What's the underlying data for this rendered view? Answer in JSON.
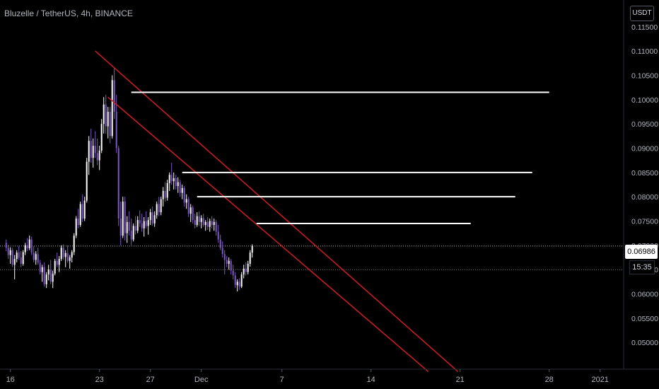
{
  "header": {
    "title": "Bluzelle / TetherUS, 4h, BINANCE"
  },
  "axis": {
    "currency": "USDT",
    "current_price": "0.06986",
    "countdown": "15:35"
  },
  "colors": {
    "background": "#000000",
    "bull": "#ffffff",
    "bear": "#7e57c2",
    "channel": "#d01c24",
    "levels": "#ffffff",
    "axis_text": "#b2b5be"
  },
  "chart_data": {
    "type": "candlestick",
    "symbol": "Bluzelle / TetherUS",
    "interval": "4h",
    "exchange": "BINANCE",
    "currency": "USDT",
    "ylim": [
      0.0445,
      0.1205
    ],
    "y_ticks": [
      "0.05000",
      "0.05500",
      "0.06000",
      "0.06500",
      "0.07000",
      "0.07500",
      "0.08000",
      "0.08500",
      "0.09000",
      "0.09500",
      "0.10000",
      "0.10500",
      "0.11000",
      "0.11500"
    ],
    "x_ticks": [
      {
        "label": "16",
        "bar": 2
      },
      {
        "label": "23",
        "bar": 44
      },
      {
        "label": "27",
        "bar": 68
      },
      {
        "label": "Dec",
        "bar": 92
      },
      {
        "label": "7",
        "bar": 130
      },
      {
        "label": "14",
        "bar": 172
      },
      {
        "label": "21",
        "bar": 214
      },
      {
        "label": "28",
        "bar": 256
      },
      {
        "label": "2021",
        "bar": 280
      }
    ],
    "candles": [
      [
        0.0705,
        0.0712,
        0.0688,
        0.0695
      ],
      [
        0.0695,
        0.0701,
        0.0672,
        0.068
      ],
      [
        0.068,
        0.0696,
        0.0662,
        0.069
      ],
      [
        0.069,
        0.0695,
        0.0655,
        0.066
      ],
      [
        0.066,
        0.068,
        0.063,
        0.0672
      ],
      [
        0.0672,
        0.069,
        0.0665,
        0.0685
      ],
      [
        0.0685,
        0.0699,
        0.067,
        0.0675
      ],
      [
        0.0675,
        0.0688,
        0.0655,
        0.0662
      ],
      [
        0.0662,
        0.069,
        0.0658,
        0.0686
      ],
      [
        0.0686,
        0.0705,
        0.068,
        0.07
      ],
      [
        0.07,
        0.0715,
        0.0688,
        0.0694
      ],
      [
        0.0694,
        0.072,
        0.069,
        0.0712
      ],
      [
        0.0712,
        0.0718,
        0.068,
        0.0685
      ],
      [
        0.0685,
        0.0698,
        0.0665,
        0.067
      ],
      [
        0.067,
        0.0688,
        0.066,
        0.0682
      ],
      [
        0.0682,
        0.0695,
        0.066,
        0.0664
      ],
      [
        0.0664,
        0.067,
        0.064,
        0.0645
      ],
      [
        0.0645,
        0.066,
        0.0625,
        0.0655
      ],
      [
        0.0655,
        0.0665,
        0.0615,
        0.062
      ],
      [
        0.062,
        0.0645,
        0.0612,
        0.064
      ],
      [
        0.064,
        0.066,
        0.0628,
        0.065
      ],
      [
        0.065,
        0.067,
        0.062,
        0.0625
      ],
      [
        0.0625,
        0.0648,
        0.0612,
        0.0642
      ],
      [
        0.0642,
        0.0672,
        0.0638,
        0.0668
      ],
      [
        0.0668,
        0.0685,
        0.0655,
        0.066
      ],
      [
        0.066,
        0.0678,
        0.0645,
        0.0672
      ],
      [
        0.0672,
        0.07,
        0.0668,
        0.0695
      ],
      [
        0.0695,
        0.0702,
        0.067,
        0.0676
      ],
      [
        0.0676,
        0.069,
        0.0655,
        0.0684
      ],
      [
        0.0684,
        0.07,
        0.0664,
        0.0668
      ],
      [
        0.0668,
        0.068,
        0.0652,
        0.0675
      ],
      [
        0.0675,
        0.069,
        0.0665,
        0.0686
      ],
      [
        0.0686,
        0.0725,
        0.068,
        0.072
      ],
      [
        0.072,
        0.076,
        0.0715,
        0.0755
      ],
      [
        0.0755,
        0.0775,
        0.0735,
        0.0742
      ],
      [
        0.0742,
        0.079,
        0.0738,
        0.0785
      ],
      [
        0.0785,
        0.0805,
        0.0748,
        0.0755
      ],
      [
        0.0755,
        0.08,
        0.075,
        0.0792
      ],
      [
        0.0792,
        0.088,
        0.0788,
        0.0872
      ],
      [
        0.0872,
        0.0925,
        0.0845,
        0.0915
      ],
      [
        0.0915,
        0.094,
        0.087,
        0.088
      ],
      [
        0.088,
        0.092,
        0.086,
        0.0905
      ],
      [
        0.0905,
        0.0935,
        0.088,
        0.089
      ],
      [
        0.089,
        0.092,
        0.0865,
        0.0875
      ],
      [
        0.0875,
        0.0905,
        0.0855,
        0.0895
      ],
      [
        0.0895,
        0.096,
        0.089,
        0.095
      ],
      [
        0.095,
        0.1005,
        0.093,
        0.099
      ],
      [
        0.099,
        0.101,
        0.093,
        0.0945
      ],
      [
        0.0945,
        0.0985,
        0.092,
        0.0975
      ],
      [
        0.0975,
        0.0985,
        0.091,
        0.0925
      ],
      [
        0.0925,
        0.105,
        0.092,
        0.104
      ],
      [
        0.104,
        0.1065,
        0.096,
        0.0975
      ],
      [
        0.0975,
        0.101,
        0.089,
        0.09
      ],
      [
        0.09,
        0.0905,
        0.074,
        0.0755
      ],
      [
        0.0755,
        0.079,
        0.07,
        0.072
      ],
      [
        0.072,
        0.08,
        0.0715,
        0.079
      ],
      [
        0.079,
        0.08,
        0.071,
        0.0725
      ],
      [
        0.0725,
        0.076,
        0.0705,
        0.0748
      ],
      [
        0.0748,
        0.077,
        0.072,
        0.073
      ],
      [
        0.073,
        0.0755,
        0.07,
        0.0712
      ],
      [
        0.0712,
        0.0745,
        0.0708,
        0.074
      ],
      [
        0.074,
        0.076,
        0.0722,
        0.073
      ],
      [
        0.073,
        0.076,
        0.0725,
        0.0752
      ],
      [
        0.0752,
        0.0772,
        0.0738,
        0.0745
      ],
      [
        0.0745,
        0.0765,
        0.0728,
        0.0735
      ],
      [
        0.0735,
        0.0758,
        0.0718,
        0.075
      ],
      [
        0.075,
        0.077,
        0.0735,
        0.074
      ],
      [
        0.074,
        0.0758,
        0.0722,
        0.0752
      ],
      [
        0.0752,
        0.0775,
        0.0742,
        0.0768
      ],
      [
        0.0768,
        0.078,
        0.074,
        0.0745
      ],
      [
        0.0745,
        0.077,
        0.0738,
        0.0762
      ],
      [
        0.0762,
        0.079,
        0.0755,
        0.0785
      ],
      [
        0.0785,
        0.08,
        0.076,
        0.0768
      ],
      [
        0.0768,
        0.08,
        0.0762,
        0.0795
      ],
      [
        0.0795,
        0.082,
        0.078,
        0.0812
      ],
      [
        0.0812,
        0.083,
        0.079,
        0.0798
      ],
      [
        0.0798,
        0.0835,
        0.0792,
        0.0828
      ],
      [
        0.0828,
        0.085,
        0.0812,
        0.0845
      ],
      [
        0.0845,
        0.087,
        0.0825,
        0.0832
      ],
      [
        0.0832,
        0.085,
        0.0815,
        0.0838
      ],
      [
        0.0838,
        0.0845,
        0.0815,
        0.0822
      ],
      [
        0.0822,
        0.084,
        0.0808,
        0.083
      ],
      [
        0.083,
        0.0835,
        0.08,
        0.0808
      ],
      [
        0.0808,
        0.0825,
        0.0795,
        0.0818
      ],
      [
        0.0818,
        0.0822,
        0.078,
        0.0788
      ],
      [
        0.0788,
        0.0805,
        0.0775,
        0.0795
      ],
      [
        0.0795,
        0.08,
        0.0758,
        0.0765
      ],
      [
        0.0765,
        0.0785,
        0.0748,
        0.0778
      ],
      [
        0.0778,
        0.0782,
        0.0745,
        0.0752
      ],
      [
        0.0752,
        0.0765,
        0.0735,
        0.0742
      ],
      [
        0.0742,
        0.0768,
        0.0738,
        0.076
      ],
      [
        0.076,
        0.077,
        0.074,
        0.0748
      ],
      [
        0.0748,
        0.0762,
        0.0735,
        0.0756
      ],
      [
        0.0756,
        0.0765,
        0.0738,
        0.0742
      ],
      [
        0.0742,
        0.0752,
        0.073,
        0.0748
      ],
      [
        0.0748,
        0.0758,
        0.0732,
        0.0738
      ],
      [
        0.0738,
        0.0755,
        0.0728,
        0.075
      ],
      [
        0.075,
        0.076,
        0.0735,
        0.0742
      ],
      [
        0.0742,
        0.0755,
        0.073,
        0.0748
      ],
      [
        0.0748,
        0.0752,
        0.072,
        0.0728
      ],
      [
        0.0728,
        0.0742,
        0.0705,
        0.0712
      ],
      [
        0.0712,
        0.0722,
        0.069,
        0.0695
      ],
      [
        0.0695,
        0.0708,
        0.0675,
        0.0682
      ],
      [
        0.0682,
        0.069,
        0.064,
        0.067
      ],
      [
        0.067,
        0.0678,
        0.0655,
        0.0662
      ],
      [
        0.0662,
        0.0675,
        0.065,
        0.0668
      ],
      [
        0.0668,
        0.0672,
        0.064,
        0.0648
      ],
      [
        0.0648,
        0.066,
        0.063,
        0.0638
      ],
      [
        0.0638,
        0.0645,
        0.0612,
        0.0618
      ],
      [
        0.0618,
        0.063,
        0.0605,
        0.0625
      ],
      [
        0.0625,
        0.0632,
        0.0608,
        0.0615
      ],
      [
        0.0615,
        0.0645,
        0.0612,
        0.064
      ],
      [
        0.064,
        0.066,
        0.0632,
        0.0652
      ],
      [
        0.0652,
        0.0665,
        0.0638,
        0.0645
      ],
      [
        0.0645,
        0.0668,
        0.064,
        0.0662
      ],
      [
        0.0662,
        0.069,
        0.0656,
        0.0685
      ],
      [
        0.0685,
        0.0702,
        0.0675,
        0.0698
      ]
    ],
    "horizontal_levels": [
      {
        "price": 0.1015,
        "from_bar": 59,
        "to_bar": 256
      },
      {
        "price": 0.085,
        "from_bar": 83,
        "to_bar": 248
      },
      {
        "price": 0.08,
        "from_bar": 90,
        "to_bar": 240
      },
      {
        "price": 0.0745,
        "from_bar": 118,
        "to_bar": 219
      }
    ],
    "channel_lines": [
      {
        "from": {
          "bar": 42,
          "price": 0.11
        },
        "to": {
          "bar": 213,
          "price": 0.044
        }
      },
      {
        "from": {
          "bar": 48,
          "price": 0.1005
        },
        "to": {
          "bar": 199,
          "price": 0.044
        }
      }
    ],
    "current_price_line": 0.06986,
    "reference_line": 0.065,
    "grid": false
  }
}
